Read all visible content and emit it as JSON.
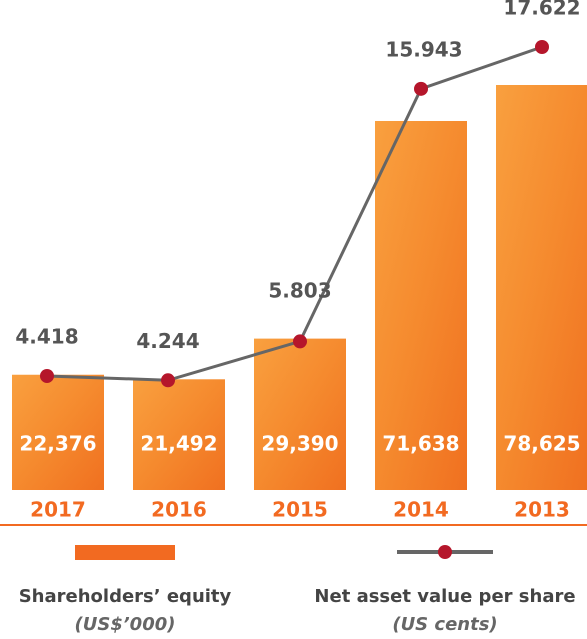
{
  "chart_data": {
    "type": "bar-line",
    "categories": [
      "2017",
      "2016",
      "2015",
      "2014",
      "2013"
    ],
    "series": [
      {
        "name": "Shareholders’ equity",
        "unit": "(US$’000)",
        "color": "#f26a21",
        "values": [
          22376,
          21492,
          29390,
          71638,
          78625
        ],
        "value_labels": [
          "22,376",
          "21,492",
          "29,390",
          "71,638",
          "78,625"
        ]
      },
      {
        "name": "Net asset value per share",
        "unit": "(US cents)",
        "color": "#666666",
        "marker_color": "#b5162b",
        "axis": "y2",
        "values": [
          4.418,
          4.244,
          5.803,
          15.943,
          17.622
        ]
      }
    ]
  }
}
